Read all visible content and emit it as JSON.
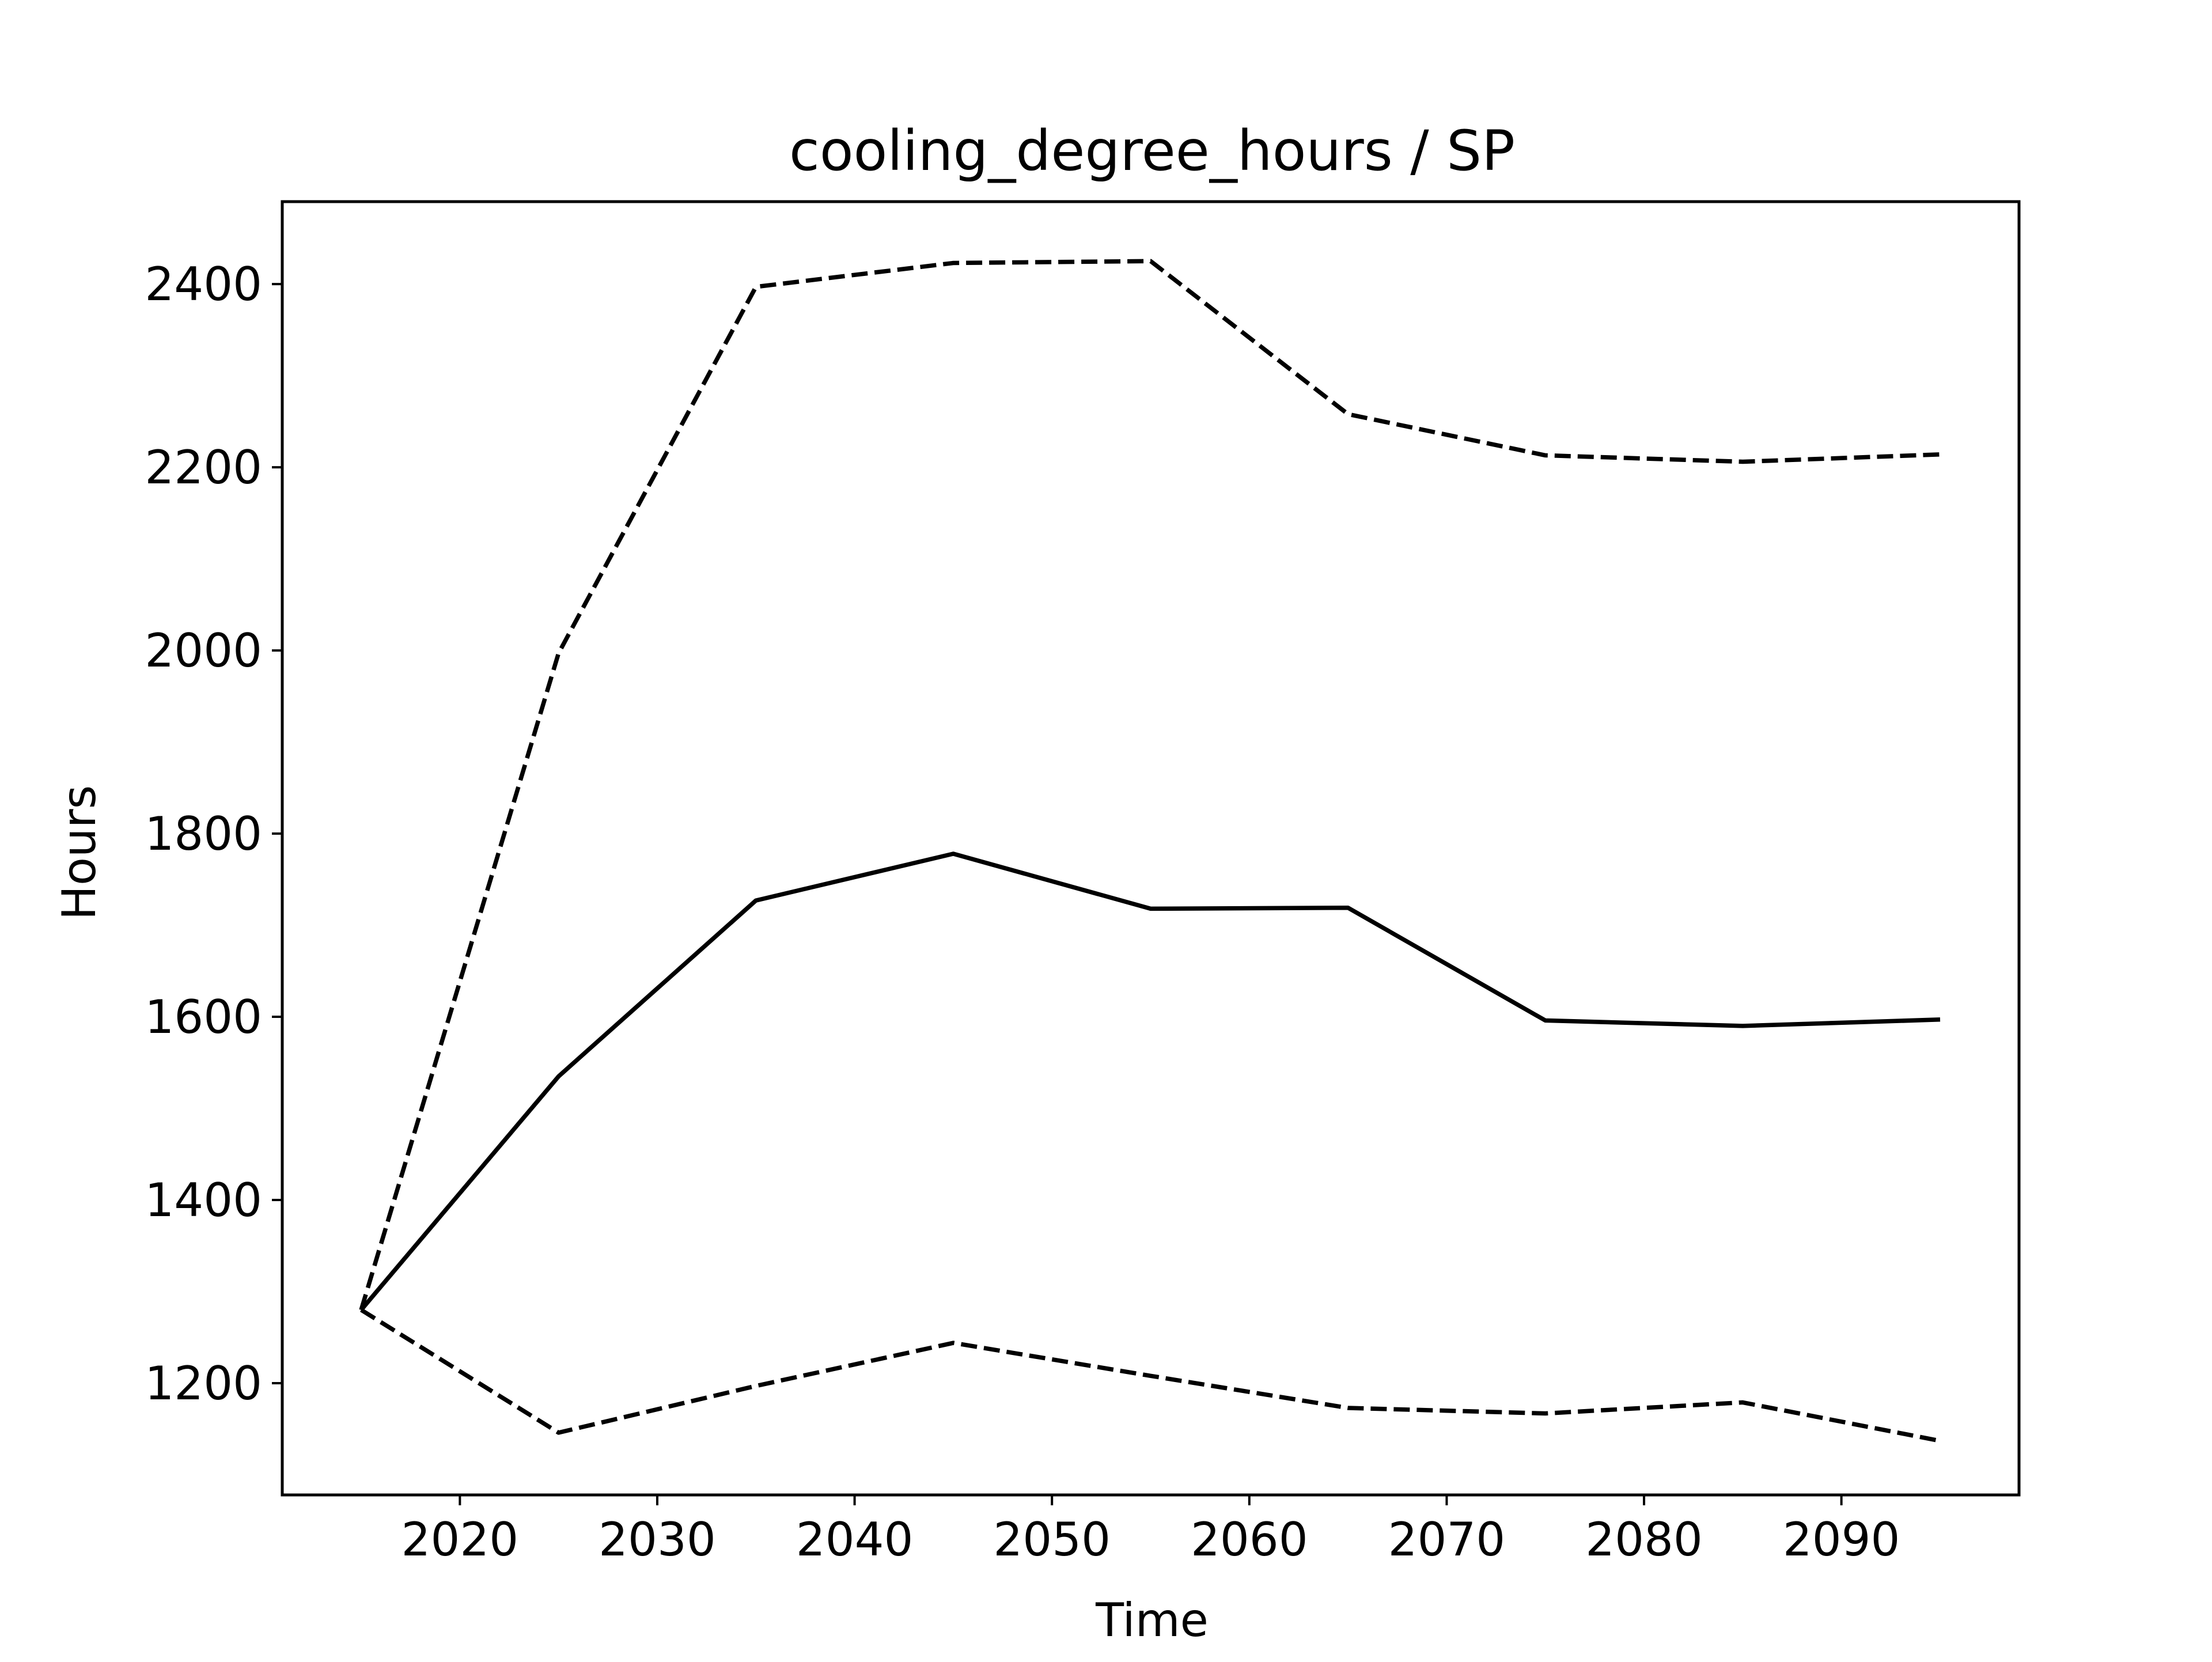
{
  "chart_data": {
    "type": "line",
    "title": "cooling_degree_hours / SP",
    "xlabel": "Time",
    "ylabel": "Hours",
    "x": [
      2015,
      2025,
      2035,
      2045,
      2055,
      2065,
      2075,
      2085,
      2095
    ],
    "series": [
      {
        "line_style": "dashed",
        "color": "#000000",
        "values": [
          1280,
          1997,
          2397,
          2423,
          2425,
          2258,
          2213,
          2206,
          2214
        ]
      },
      {
        "line_style": "solid",
        "color": "#000000",
        "values": [
          1280,
          1535,
          1727,
          1778,
          1718,
          1719,
          1596,
          1590,
          1597
        ]
      },
      {
        "line_style": "dashed",
        "color": "#000000",
        "values": [
          1280,
          1146,
          1197,
          1244,
          1208,
          1173,
          1167,
          1179,
          1137
        ]
      }
    ],
    "xlim": [
      2011,
      2099
    ],
    "ylim": [
      1078,
      2490
    ],
    "xticks": [
      2020,
      2030,
      2040,
      2050,
      2060,
      2070,
      2080,
      2090
    ],
    "yticks": [
      1200,
      1400,
      1600,
      1800,
      2000,
      2200,
      2400
    ],
    "grid": false,
    "legend": "none"
  }
}
